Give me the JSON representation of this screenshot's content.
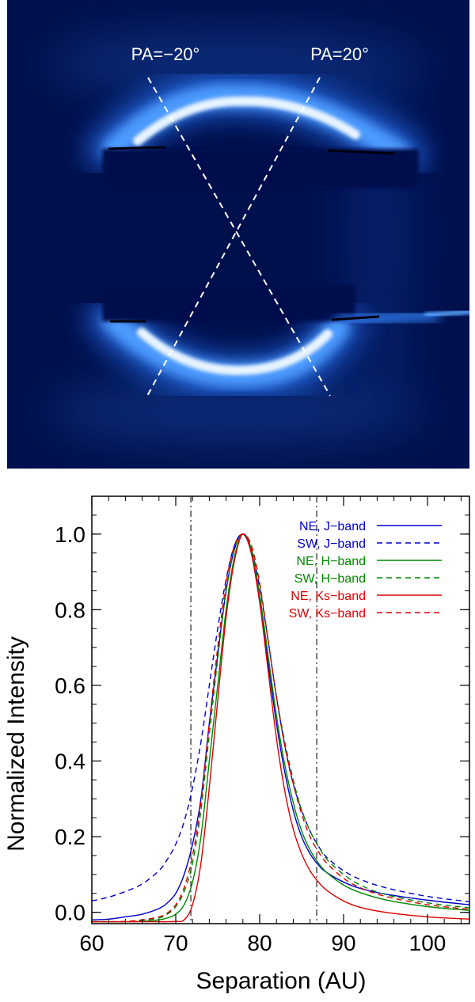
{
  "image_panel": {
    "labels": [
      "PA=−20°",
      "PA=20°"
    ],
    "background_color": "#00104d",
    "ring_color": "#cfe6ff",
    "line_color": "#ffffff"
  },
  "chart_data": {
    "type": "line",
    "title": "",
    "xlabel": "Separation (AU)",
    "ylabel": "Normalized Intensity",
    "xlim": [
      60,
      105
    ],
    "ylim": [
      -0.03,
      1.1
    ],
    "xticks": [
      "60",
      "70",
      "80",
      "90",
      "100"
    ],
    "xtick_values": [
      60,
      70,
      80,
      90,
      100
    ],
    "yticks": [
      "0.0",
      "0.2",
      "0.4",
      "0.6",
      "0.8",
      "1.0"
    ],
    "ytick_values": [
      0.0,
      0.2,
      0.4,
      0.6,
      0.8,
      1.0
    ],
    "vlines": [
      71.8,
      86.8
    ],
    "legend_position": "top-right",
    "x": [
      60,
      62,
      64,
      66,
      68,
      69,
      70,
      71,
      72,
      73,
      74,
      75,
      76,
      77,
      78,
      79,
      80,
      81,
      82,
      83,
      84,
      85,
      86,
      87,
      88,
      90,
      92,
      95,
      100,
      105
    ],
    "series": [
      {
        "name": "NE, J−band",
        "color": "#0000cc",
        "dash": "solid",
        "values": [
          -0.02,
          -0.018,
          -0.012,
          -0.005,
          0.01,
          0.025,
          0.05,
          0.1,
          0.18,
          0.3,
          0.5,
          0.68,
          0.85,
          0.96,
          1.0,
          0.95,
          0.82,
          0.66,
          0.5,
          0.37,
          0.27,
          0.2,
          0.155,
          0.125,
          0.105,
          0.08,
          0.063,
          0.048,
          0.032,
          0.02
        ]
      },
      {
        "name": "SW, J−band",
        "color": "#0000cc",
        "dash": "dashed",
        "values": [
          0.03,
          0.04,
          0.055,
          0.075,
          0.11,
          0.14,
          0.18,
          0.24,
          0.33,
          0.45,
          0.6,
          0.75,
          0.88,
          0.97,
          1.0,
          0.96,
          0.86,
          0.72,
          0.57,
          0.44,
          0.34,
          0.27,
          0.215,
          0.175,
          0.145,
          0.11,
          0.087,
          0.065,
          0.042,
          0.028
        ]
      },
      {
        "name": "NE, H−band",
        "color": "#008800",
        "dash": "solid",
        "values": [
          -0.025,
          -0.025,
          -0.025,
          -0.024,
          -0.02,
          -0.015,
          -0.005,
          0.02,
          0.08,
          0.2,
          0.4,
          0.6,
          0.8,
          0.94,
          1.0,
          0.96,
          0.84,
          0.68,
          0.52,
          0.39,
          0.29,
          0.215,
          0.165,
          0.13,
          0.105,
          0.072,
          0.052,
          0.033,
          0.015,
          0.005
        ]
      },
      {
        "name": "SW, H−band",
        "color": "#008800",
        "dash": "dashed",
        "values": [
          -0.025,
          -0.025,
          -0.025,
          -0.022,
          -0.015,
          -0.005,
          0.015,
          0.055,
          0.13,
          0.27,
          0.47,
          0.67,
          0.85,
          0.96,
          1.0,
          0.97,
          0.87,
          0.72,
          0.57,
          0.45,
          0.35,
          0.27,
          0.215,
          0.175,
          0.14,
          0.1,
          0.072,
          0.047,
          0.025,
          0.012
        ]
      },
      {
        "name": "NE, Ks−band",
        "color": "#dd0000",
        "dash": "solid",
        "values": [
          -0.025,
          -0.025,
          -0.025,
          -0.025,
          -0.025,
          -0.025,
          -0.024,
          -0.02,
          0.02,
          0.13,
          0.33,
          0.56,
          0.78,
          0.93,
          1.0,
          0.95,
          0.82,
          0.64,
          0.46,
          0.32,
          0.22,
          0.155,
          0.11,
          0.08,
          0.058,
          0.03,
          0.013,
          0.0,
          -0.012,
          -0.018
        ]
      },
      {
        "name": "SW, Ks−band",
        "color": "#dd0000",
        "dash": "dashed",
        "values": [
          -0.025,
          -0.025,
          -0.024,
          -0.02,
          -0.012,
          -0.002,
          0.02,
          0.065,
          0.15,
          0.29,
          0.5,
          0.7,
          0.87,
          0.97,
          1.0,
          0.97,
          0.87,
          0.72,
          0.57,
          0.44,
          0.34,
          0.26,
          0.2,
          0.16,
          0.13,
          0.09,
          0.065,
          0.042,
          0.02,
          0.008
        ]
      }
    ]
  }
}
